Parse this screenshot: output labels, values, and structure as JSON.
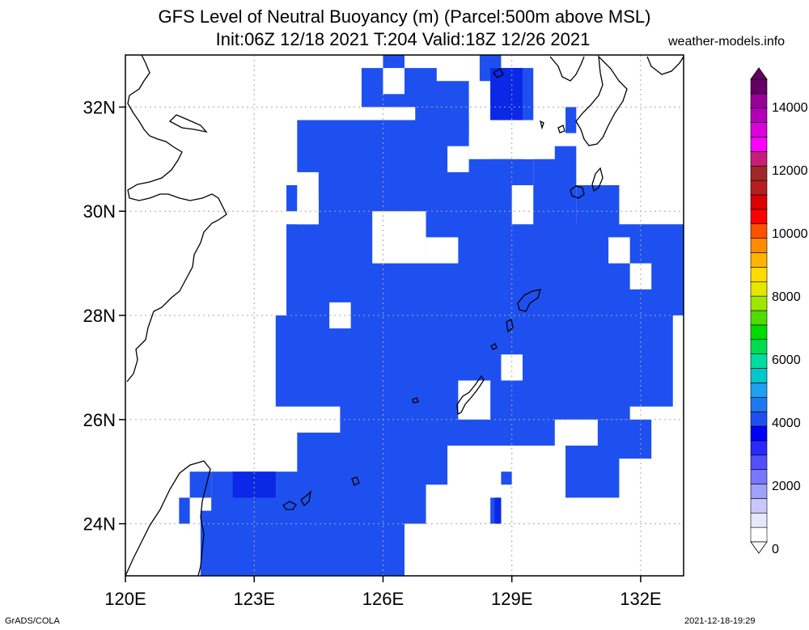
{
  "header": {
    "title_line1": "GFS Level of Neutral Buoyancy (m) (Parcel:500m above MSL)",
    "title_line2": "Init:06Z 12/18 2021 T:204 Valid:18Z 12/26 2021",
    "site": "weather-models.info"
  },
  "footer": {
    "software": "GrADS/COLA",
    "generated": "2021-12-18-19:29"
  },
  "map": {
    "lon_range": [
      120,
      133
    ],
    "lat_range": [
      23,
      33
    ],
    "lat_ticks": [
      {
        "value": 24,
        "label": "24N"
      },
      {
        "value": 26,
        "label": "26N"
      },
      {
        "value": 28,
        "label": "28N"
      },
      {
        "value": 30,
        "label": "30N"
      },
      {
        "value": 32,
        "label": "32N"
      }
    ],
    "lon_ticks": [
      {
        "value": 120,
        "label": "120E"
      },
      {
        "value": 123,
        "label": "123E"
      },
      {
        "value": 126,
        "label": "126E"
      },
      {
        "value": 129,
        "label": "129E"
      },
      {
        "value": 132,
        "label": "132E"
      }
    ],
    "field_color": "#1e50f0",
    "field_color_dark": "#0a28e6",
    "coast_color": "#000000",
    "grid_color": "#aaaaaa"
  },
  "colorbar": {
    "labels": [
      "0",
      "2000",
      "4000",
      "6000",
      "8000",
      "10000",
      "12000",
      "14000"
    ],
    "colors": [
      "#ffffff",
      "#e6e6ff",
      "#c8c8ff",
      "#a0a0ff",
      "#7878ff",
      "#5050ff",
      "#2828ff",
      "#0000ff",
      "#1e50f0",
      "#1e78f0",
      "#1ea0f0",
      "#00c8c8",
      "#00dca0",
      "#00dc50",
      "#00dc00",
      "#50dc00",
      "#a0e600",
      "#e6e600",
      "#ffdc00",
      "#ffb400",
      "#ff8c00",
      "#ff5000",
      "#ff0000",
      "#dc0000",
      "#b41e1e",
      "#a02828",
      "#c81e78",
      "#ff00ff",
      "#dc00dc",
      "#b400b4",
      "#960096",
      "#640064"
    ]
  }
}
